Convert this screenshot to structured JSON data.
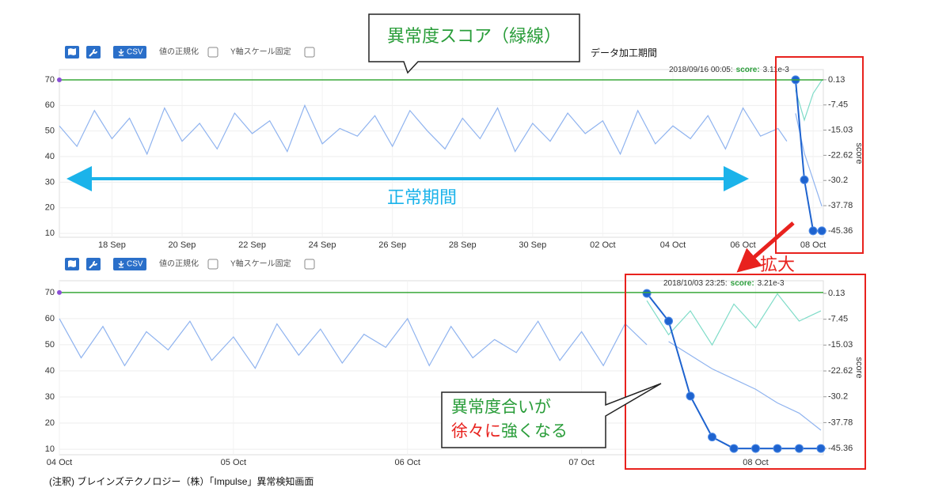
{
  "chart_data": [
    {
      "type": "line",
      "title": null,
      "hover": {
        "time": "2018/09/16 00:05:",
        "key": "score:",
        "value": "3.11e-3"
      },
      "y2label": "score",
      "x": [
        "2018-09-16T12:00",
        "2018-09-17T00:00",
        "2018-09-17T12:00",
        "2018-09-18T00:00",
        "2018-09-18T12:00",
        "2018-09-19T00:00",
        "2018-09-19T12:00",
        "2018-09-20T00:00",
        "2018-09-20T12:00",
        "2018-09-21T00:00",
        "2018-09-21T12:00",
        "2018-09-22T00:00",
        "2018-09-22T12:00",
        "2018-09-23T00:00",
        "2018-09-23T12:00",
        "2018-09-24T00:00",
        "2018-09-24T12:00",
        "2018-09-25T00:00",
        "2018-09-25T12:00",
        "2018-09-26T00:00",
        "2018-09-26T12:00",
        "2018-09-27T00:00",
        "2018-09-27T12:00",
        "2018-09-28T00:00",
        "2018-09-28T12:00",
        "2018-09-29T00:00",
        "2018-09-29T12:00",
        "2018-09-30T00:00",
        "2018-09-30T12:00",
        "2018-10-01T00:00",
        "2018-10-01T12:00",
        "2018-10-02T00:00",
        "2018-10-02T12:00",
        "2018-10-03T00:00",
        "2018-10-03T12:00",
        "2018-10-04T00:00",
        "2018-10-04T12:00",
        "2018-10-05T00:00",
        "2018-10-05T12:00",
        "2018-10-06T00:00",
        "2018-10-06T12:00",
        "2018-10-07T00:00",
        "2018-10-07T06:00",
        "2018-10-07T12:00",
        "2018-10-07T18:00",
        "2018-10-08T00:00",
        "2018-10-08T06:00"
      ],
      "series": [
        {
          "color": "#8fb3ef",
          "values": [
            52,
            44,
            58,
            47,
            55,
            41,
            59,
            46,
            53,
            43,
            57,
            49,
            54,
            42,
            60,
            45,
            51,
            48,
            56,
            44,
            58,
            50,
            43,
            55,
            47,
            59,
            42,
            53,
            46,
            57,
            49,
            54,
            41,
            58,
            45,
            52,
            47,
            56,
            43,
            59,
            48,
            51,
            46,
            null,
            null,
            null,
            null
          ]
        },
        {
          "color": "#8fb3ef",
          "axis": "y2",
          "values": [
            null,
            null,
            null,
            null,
            null,
            null,
            null,
            null,
            null,
            null,
            null,
            null,
            null,
            null,
            null,
            null,
            null,
            null,
            null,
            null,
            null,
            null,
            null,
            null,
            null,
            null,
            null,
            null,
            null,
            null,
            null,
            null,
            null,
            null,
            null,
            null,
            null,
            null,
            null,
            null,
            null,
            null,
            null,
            -10,
            -22,
            -30,
            -38
          ]
        },
        {
          "color": "#7fdcc8",
          "axis": "y2",
          "values": [
            null,
            null,
            null,
            null,
            null,
            null,
            null,
            null,
            null,
            null,
            null,
            null,
            null,
            null,
            null,
            null,
            null,
            null,
            null,
            null,
            null,
            null,
            null,
            null,
            null,
            null,
            null,
            null,
            null,
            null,
            null,
            null,
            null,
            null,
            null,
            null,
            null,
            null,
            null,
            null,
            null,
            null,
            null,
            -3,
            -12,
            -4,
            0
          ]
        },
        {
          "color": "#1e63cf",
          "axis": "y2",
          "marker": "circle",
          "values": [
            null,
            null,
            null,
            null,
            null,
            null,
            null,
            null,
            null,
            null,
            null,
            null,
            null,
            null,
            null,
            null,
            null,
            null,
            null,
            null,
            null,
            null,
            null,
            null,
            null,
            null,
            null,
            null,
            null,
            null,
            null,
            null,
            null,
            null,
            null,
            null,
            null,
            null,
            null,
            null,
            null,
            null,
            null,
            0.13,
            -30,
            -45.36,
            -45.36
          ]
        }
      ],
      "threshold": {
        "value": 70,
        "color": "#3aa93a"
      },
      "xlim": [
        "2018-09-16T12:00",
        "2018-10-08T07:00"
      ],
      "xticks": [
        {
          "value": "2018-09-18T00:00",
          "label": "18 Sep"
        },
        {
          "value": "2018-09-20T00:00",
          "label": "20 Sep"
        },
        {
          "value": "2018-09-22T00:00",
          "label": "22 Sep"
        },
        {
          "value": "2018-09-24T00:00",
          "label": "24 Sep"
        },
        {
          "value": "2018-09-26T00:00",
          "label": "26 Sep"
        },
        {
          "value": "2018-09-28T00:00",
          "label": "28 Sep"
        },
        {
          "value": "2018-09-30T00:00",
          "label": "30 Sep"
        },
        {
          "value": "2018-10-02T00:00",
          "label": "02 Oct"
        },
        {
          "value": "2018-10-04T00:00",
          "label": "04 Oct"
        },
        {
          "value": "2018-10-06T00:00",
          "label": "06 Oct"
        },
        {
          "value": "2018-10-08T00:00",
          "label": "08 Oct"
        }
      ],
      "ylim": [
        8.5,
        74
      ],
      "yticks": [
        10,
        20,
        30,
        40,
        50,
        60,
        70
      ],
      "y2lim": [
        -47.3,
        3.2
      ],
      "y2ticks": [
        0.13,
        -7.45,
        -15.03,
        -22.62,
        -30.2,
        -37.78,
        -45.36
      ],
      "grid": true
    },
    {
      "type": "line",
      "title": null,
      "hover": {
        "time": "2018/10/03 23:25:",
        "key": "score:",
        "value": "3.21e-3"
      },
      "y2label": "score",
      "x": [
        "2018-10-04T00:00",
        "2018-10-04T03:00",
        "2018-10-04T06:00",
        "2018-10-04T09:00",
        "2018-10-04T12:00",
        "2018-10-04T15:00",
        "2018-10-04T18:00",
        "2018-10-04T21:00",
        "2018-10-05T00:00",
        "2018-10-05T03:00",
        "2018-10-05T06:00",
        "2018-10-05T09:00",
        "2018-10-05T12:00",
        "2018-10-05T15:00",
        "2018-10-05T18:00",
        "2018-10-05T21:00",
        "2018-10-06T00:00",
        "2018-10-06T03:00",
        "2018-10-06T06:00",
        "2018-10-06T09:00",
        "2018-10-06T12:00",
        "2018-10-06T15:00",
        "2018-10-06T18:00",
        "2018-10-06T21:00",
        "2018-10-07T00:00",
        "2018-10-07T03:00",
        "2018-10-07T06:00",
        "2018-10-07T09:00",
        "2018-10-07T12:00",
        "2018-10-07T15:00",
        "2018-10-07T18:00",
        "2018-10-07T21:00",
        "2018-10-08T00:00",
        "2018-10-08T03:00",
        "2018-10-08T06:00",
        "2018-10-08T09:00"
      ],
      "series": [
        {
          "color": "#8fb3ef",
          "values": [
            60,
            45,
            57,
            42,
            55,
            48,
            59,
            44,
            53,
            41,
            58,
            46,
            56,
            43,
            54,
            49,
            60,
            42,
            57,
            45,
            52,
            47,
            59,
            44,
            55,
            42,
            58,
            50,
            null,
            null,
            null,
            null,
            null,
            null,
            null,
            null
          ]
        },
        {
          "color": "#8fb3ef",
          "axis": "y2",
          "values": [
            null,
            null,
            null,
            null,
            null,
            null,
            null,
            null,
            null,
            null,
            null,
            null,
            null,
            null,
            null,
            null,
            null,
            null,
            null,
            null,
            null,
            null,
            null,
            null,
            null,
            null,
            null,
            null,
            -14,
            -18,
            -22,
            -25,
            -28,
            -32,
            -35,
            -40
          ]
        },
        {
          "color": "#7fdcc8",
          "axis": "y2",
          "values": [
            null,
            null,
            null,
            null,
            null,
            null,
            null,
            null,
            null,
            null,
            null,
            null,
            null,
            null,
            null,
            null,
            null,
            null,
            null,
            null,
            null,
            null,
            null,
            null,
            null,
            null,
            null,
            -2,
            -12,
            -5,
            -15,
            -3,
            -10,
            0,
            -8,
            -5
          ]
        },
        {
          "color": "#1e63cf",
          "axis": "y2",
          "marker": "circle",
          "values": [
            null,
            null,
            null,
            null,
            null,
            null,
            null,
            null,
            null,
            null,
            null,
            null,
            null,
            null,
            null,
            null,
            null,
            null,
            null,
            null,
            null,
            null,
            null,
            null,
            null,
            null,
            null,
            0.13,
            -8,
            -30,
            -42,
            -45.36,
            -45.36,
            -45.36,
            -45.36,
            -45.36
          ]
        }
      ],
      "threshold": {
        "value": 70,
        "color": "#3aa93a"
      },
      "xlim": [
        "2018-10-04T00:00",
        "2018-10-08T09:20"
      ],
      "xticks": [
        {
          "value": "2018-10-04T00:00",
          "label": "04 Oct"
        },
        {
          "value": "2018-10-05T00:00",
          "label": "05 Oct"
        },
        {
          "value": "2018-10-06T00:00",
          "label": "06 Oct"
        },
        {
          "value": "2018-10-07T00:00",
          "label": "07 Oct"
        },
        {
          "value": "2018-10-08T00:00",
          "label": "08 Oct"
        }
      ],
      "ylim": [
        7.9,
        74.5
      ],
      "yticks": [
        10,
        20,
        30,
        40,
        50,
        60,
        70
      ],
      "y2lim": [
        -47.2,
        3.84
      ],
      "y2ticks": [
        0.13,
        -7.45,
        -15.03,
        -22.62,
        -30.2,
        -37.78,
        -45.36
      ],
      "grid": true
    }
  ],
  "toolbar": {
    "csv": "CSV",
    "normalize": "値の正規化",
    "fix_scale": "Y軸スケール固定"
  },
  "annotations": {
    "score_callout": "異常度スコア（緑線）",
    "processing_period": "データ加工期間",
    "zoom": "拡大",
    "normal_period": "正常期間",
    "trend_line1": "異常度合いが",
    "trend_line2a": "徐々に",
    "trend_line2b": "強くなる"
  },
  "caption": "(注釈) ブレインズテクノロジー（株）「Impulse」異常検知画面"
}
